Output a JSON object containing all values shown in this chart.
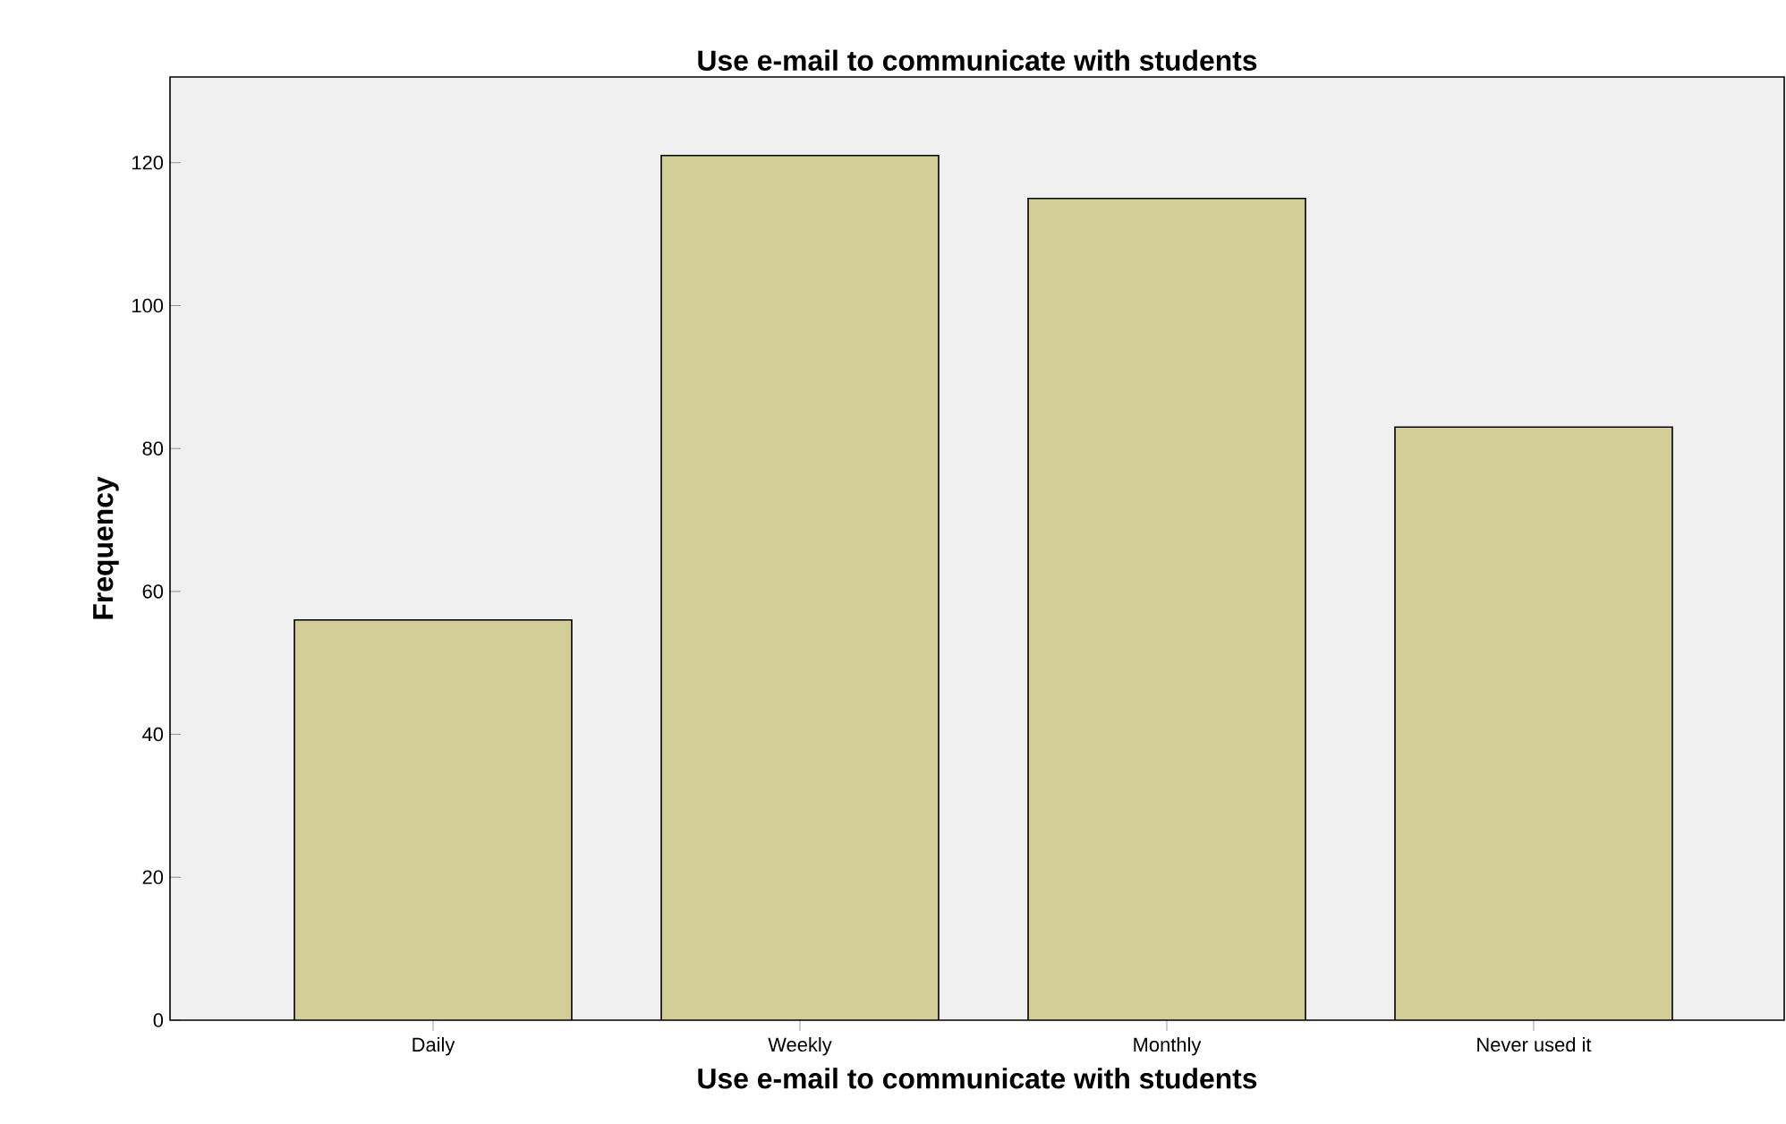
{
  "chart_data": {
    "type": "bar",
    "title": "Use e-mail to communicate with students",
    "xlabel": "Use e-mail to communicate with students",
    "ylabel": "Frequency",
    "categories": [
      "Daily",
      "Weekly",
      "Monthly",
      "Never used it"
    ],
    "values": [
      56,
      121,
      115,
      83
    ],
    "color": "#d3ce97",
    "ylim": [
      0,
      132
    ],
    "yticks": [
      0,
      20,
      40,
      60,
      80,
      100,
      120
    ],
    "grid": false
  }
}
